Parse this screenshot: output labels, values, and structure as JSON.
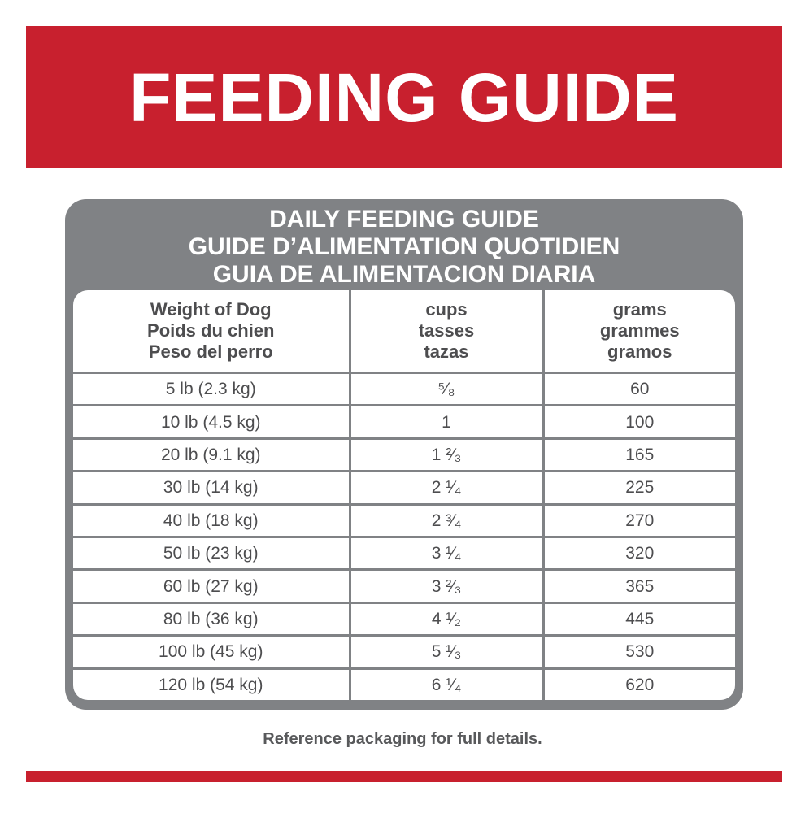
{
  "banner": {
    "title": "FEEDING GUIDE"
  },
  "panel": {
    "heading": [
      "DAILY FEEDING GUIDE",
      "GUIDE D’ALIMENTATION QUOTIDIEN",
      "GUIA DE ALIMENTACION DIARIA"
    ]
  },
  "table": {
    "headers": [
      {
        "lines": [
          "Weight of Dog",
          "Poids du chien",
          "Peso del perro"
        ]
      },
      {
        "lines": [
          "cups",
          "tasses",
          "tazas"
        ]
      },
      {
        "lines": [
          "grams",
          "grammes",
          "gramos"
        ]
      }
    ],
    "rows": [
      {
        "weight": "5 lb (2.3 kg)",
        "cups": "⁵⁄₈",
        "grams": "60"
      },
      {
        "weight": "10 lb (4.5 kg)",
        "cups": "1",
        "grams": "100"
      },
      {
        "weight": "20 lb (9.1 kg)",
        "cups": "1 ²⁄₃",
        "grams": "165"
      },
      {
        "weight": "30 lb (14 kg)",
        "cups": "2 ¹⁄₄",
        "grams": "225"
      },
      {
        "weight": "40 lb (18 kg)",
        "cups": "2 ³⁄₄",
        "grams": "270"
      },
      {
        "weight": "50 lb (23 kg)",
        "cups": "3 ¹⁄₄",
        "grams": "320"
      },
      {
        "weight": "60 lb (27 kg)",
        "cups": "3 ²⁄₃",
        "grams": "365"
      },
      {
        "weight": "80 lb (36 kg)",
        "cups": "4 ¹⁄₂",
        "grams": "445"
      },
      {
        "weight": "100 lb (45 kg)",
        "cups": "5 ¹⁄₃",
        "grams": "530"
      },
      {
        "weight": "120 lb (54 kg)",
        "cups": "6 ¹⁄₄",
        "grams": "620"
      }
    ]
  },
  "footer": {
    "note": "Reference packaging for full details."
  },
  "colors": {
    "brand_red": "#c8202e",
    "panel_gray": "#808285",
    "text_gray": "#4d4d4f"
  }
}
